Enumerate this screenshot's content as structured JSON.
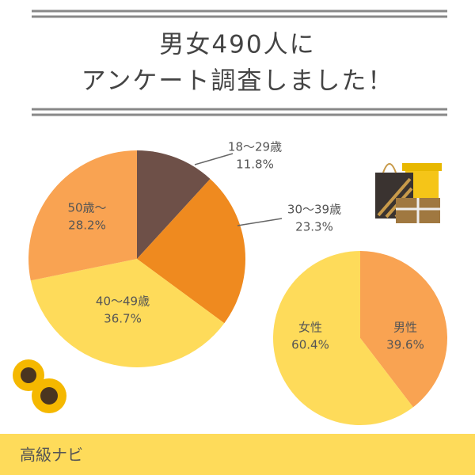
{
  "header": {
    "title_lines": [
      "男女490人に",
      "アンケート調査しました！"
    ]
  },
  "chart_data": [
    {
      "type": "pie",
      "categories": [
        "18〜29歳",
        "30〜39歳",
        "40〜49歳",
        "50歳〜"
      ],
      "values": [
        11.8,
        23.3,
        36.7,
        28.2
      ],
      "value_labels": [
        "11.8%",
        "23.3%",
        "36.7%",
        "28.2%"
      ],
      "colors": [
        "#6e5048",
        "#ef8a1f",
        "#fedb5a",
        "#f9a352"
      ]
    },
    {
      "type": "pie",
      "categories": [
        "男性",
        "女性"
      ],
      "values": [
        39.6,
        60.4
      ],
      "value_labels": [
        "39.6%",
        "60.4%"
      ],
      "colors": [
        "#f9a352",
        "#fedb5a"
      ]
    }
  ],
  "footer": {
    "text": "高級ナビ"
  }
}
